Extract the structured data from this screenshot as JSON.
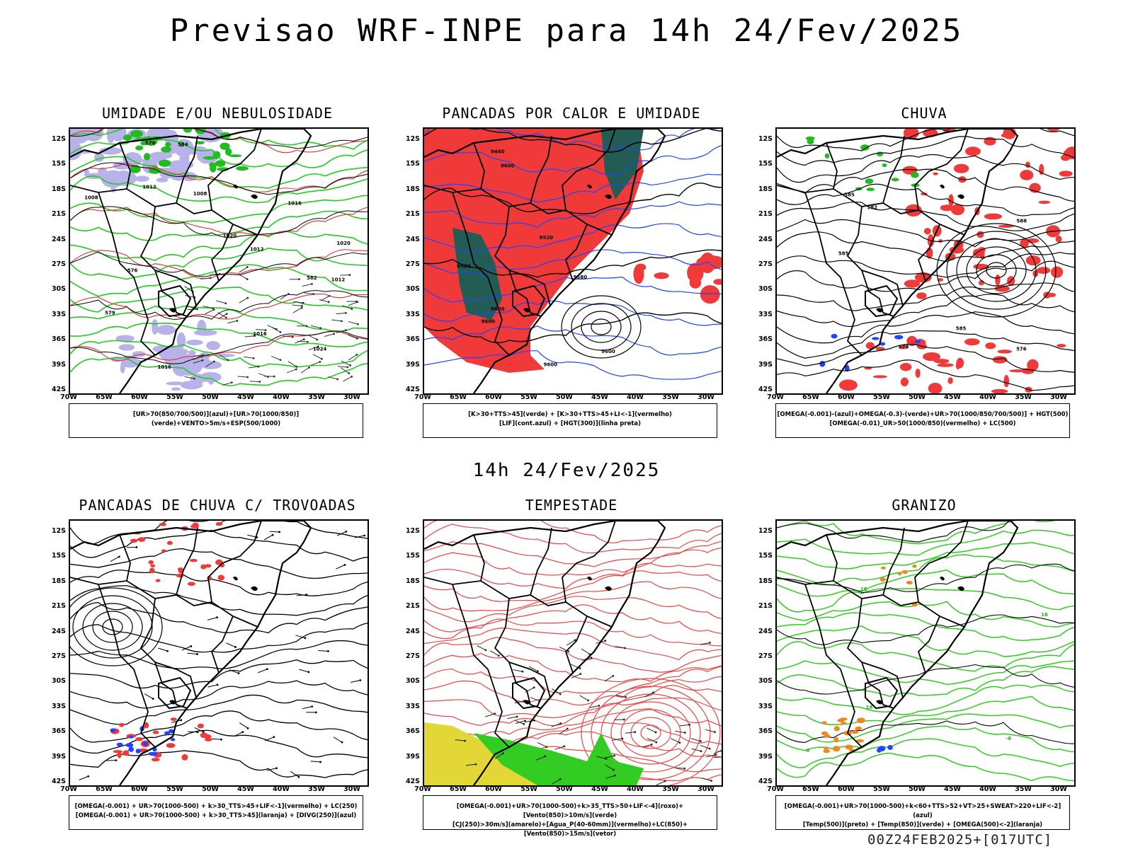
{
  "header": {
    "title": "Previsao WRF-INPE  para 14h 24/Fev/2025",
    "mid_title": "14h 24/Fev/2025",
    "footer": "00Z24FEB2025+[017UTC]"
  },
  "axes": {
    "lat_labels": [
      "12S",
      "15S",
      "18S",
      "21S",
      "24S",
      "27S",
      "30S",
      "33S",
      "36S",
      "39S",
      "42S"
    ],
    "lon_labels": [
      "70W",
      "65W",
      "60W",
      "55W",
      "50W",
      "45W",
      "40W",
      "35W",
      "30W"
    ]
  },
  "panels": [
    {
      "id": "umidade",
      "title": "UMIDADE E/OU NEBULOSIDADE",
      "legend": [
        "[UR>70(850/700/500)](azul)+[UR>70(1000/850)](verde)+VENTO>5m/s+ESP(500/1000)"
      ],
      "contour_labels": [
        "1012",
        "1016",
        "1016",
        "1008",
        "1012",
        "1016",
        "1020",
        "1024",
        "1020",
        "1012",
        "1008",
        "576",
        "579",
        "582",
        "584",
        "576"
      ]
    },
    {
      "id": "pancadas-calor",
      "title": "PANCADAS POR CALOR E UMIDADE",
      "legend": [
        "[K>30+TTS>45](verde) + [K>30+TTS>45+LI<-1](vermelho)",
        "[LIF](cont.azul) + [HGT(300)](linha preta)"
      ],
      "contour_labels": [
        "9600",
        "9600",
        "9580",
        "9520",
        "9600",
        "9440",
        "9600",
        "9520",
        "9600"
      ]
    },
    {
      "id": "chuva",
      "title": "CHUVA",
      "legend": [
        "[OMEGA(-0.001)-(azul)+OMEGA(-0.3)-(verde)+UR>70(1000/850/700/500)] + HGT(500)",
        "[OMEGA(-0.01)_UR>50(1000/850)(vermelho) + LC(500)"
      ],
      "contour_labels": [
        "585",
        "585",
        "588",
        "579",
        "576",
        "585",
        "582"
      ]
    },
    {
      "id": "pancadas-trovoadas",
      "title": "PANCADAS DE CHUVA C/ TROVOADAS",
      "legend": [
        "[OMEGA(-0.001) + UR>70(1000-500) + k>30_TTS>45+LIF<-1](vermelho) + LC(250)",
        "[OMEGA(-0.001) + UR>70(1000-500) + k>30_TTS>45](laranja) + [DIVG(250)](azul)"
      ],
      "contour_labels": []
    },
    {
      "id": "tempestade",
      "title": "TEMPESTADE",
      "legend": [
        "[OMEGA(-0.001)+UR>70(1000-500)+k>35_TTS>50+LIF<-4](roxo)+[Vento(850)>10m/s](verde)",
        "[CJ(250)>30m/s](amarelo)+[Agua_P(40-60mm)](vermelho)+LC(850)+[Vento(850)>15m/s](vetor)"
      ],
      "contour_labels": []
    },
    {
      "id": "granizo",
      "title": "GRANIZO",
      "legend": [
        "[OMEGA(-0.001)+UR>70(1000-500)+k<60+TTS>52+VT>25+SWEAT>220+LIF<-2](azul)",
        "[Temp(500)](preto) + [Temp(850)](verde) + [OMEGA(500)<-2](laranja)"
      ],
      "contour_labels": [
        "-6",
        "-6",
        "16",
        "18",
        "16"
      ]
    }
  ]
}
